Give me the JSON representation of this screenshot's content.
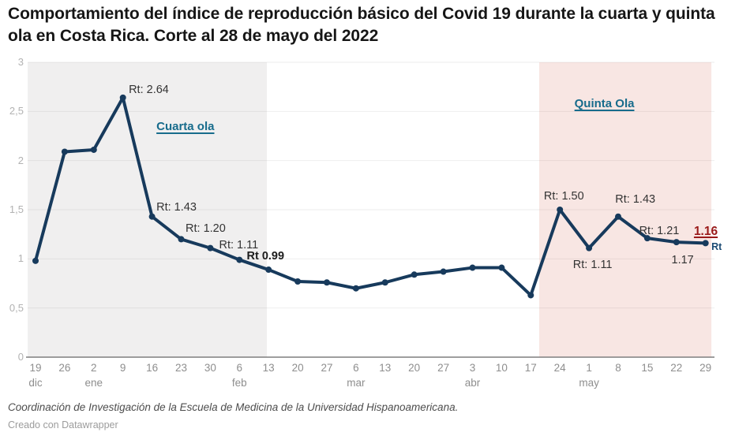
{
  "header": {
    "title": "Comportamiento del índice de reproducción básico del Covid 19 durante la cuarta y quinta ola en Costa Rica. Corte al 28 de mayo del 2022"
  },
  "footer": {
    "source": "Coordinación de Investigación de la Escuela de Medicina de la Universidad Hispanoamericana.",
    "credit": "Creado con Datawrapper"
  },
  "chart_data": {
    "type": "line",
    "title": "Comportamiento del índice de reproducción básico del Covid 19 durante la cuarta y quinta ola en Costa Rica. Corte al 28 de mayo del 2022",
    "ylabel": "Rt",
    "ylim": [
      0,
      3
    ],
    "grid": "horizontal",
    "legend_position": "none",
    "line_color": "#173a5c",
    "categories": [
      "19 dic",
      "26 dic",
      "2 ene",
      "9 ene",
      "16 ene",
      "23 ene",
      "30 ene",
      "6 feb",
      "13 feb",
      "20 feb",
      "27 feb",
      "6 mar",
      "13 mar",
      "20 mar",
      "27 mar",
      "3 abr",
      "10 abr",
      "17 abr",
      "24 abr",
      "1 may",
      "8 may",
      "15 may",
      "22 may",
      "29 may"
    ],
    "values": [
      0.98,
      2.09,
      2.11,
      2.64,
      1.43,
      1.2,
      1.11,
      0.99,
      0.89,
      0.77,
      0.76,
      0.7,
      0.76,
      0.84,
      0.87,
      0.91,
      0.91,
      0.63,
      1.5,
      1.11,
      1.43,
      1.21,
      1.17,
      1.16
    ],
    "x_axis": {
      "day_labels": [
        "19",
        "26",
        "2",
        "9",
        "16",
        "23",
        "30",
        "6",
        "13",
        "20",
        "27",
        "6",
        "13",
        "20",
        "27",
        "3",
        "10",
        "17",
        "24",
        "1",
        "8",
        "15",
        "22",
        "29"
      ],
      "month_labels": [
        {
          "i": 0,
          "label": "dic"
        },
        {
          "i": 2,
          "label": "ene"
        },
        {
          "i": 7,
          "label": "feb"
        },
        {
          "i": 11,
          "label": "mar"
        },
        {
          "i": 15,
          "label": "abr"
        },
        {
          "i": 19,
          "label": "may"
        }
      ]
    },
    "y_axis": {
      "labels": [
        "0",
        "0,5",
        "1",
        "1,5",
        "2",
        "2,5",
        "3"
      ],
      "values": [
        0,
        0.5,
        1,
        1.5,
        2,
        2.5,
        3
      ]
    },
    "bands": [
      {
        "id": "cuarta-ola-band",
        "from_i": -0.27,
        "to_i": 7.94,
        "color": "#f0efef"
      },
      {
        "id": "quinta-ola-band",
        "from_i": 17.29,
        "to_i": 23.2,
        "color": "#f8e6e3"
      }
    ],
    "annotations": [
      {
        "text": "Rt: 2.64",
        "i": 3.2,
        "v": 2.78,
        "style": "plain"
      },
      {
        "text": "Cuarta ola",
        "i": 4.15,
        "v": 2.41,
        "style": "wave"
      },
      {
        "text": "Rt: 1.43",
        "i": 4.15,
        "v": 1.59,
        "style": "plain"
      },
      {
        "text": "Rt: 1.20",
        "i": 5.15,
        "v": 1.37,
        "style": "plain"
      },
      {
        "text": "Rt: 1.11",
        "i": 6.3,
        "v": 1.205,
        "style": "plain"
      },
      {
        "text": "Rt 0.99",
        "i": 7.25,
        "v": 1.09,
        "style": "bold"
      },
      {
        "text": "Quinta Ola",
        "i": 18.5,
        "v": 2.64,
        "style": "wave"
      },
      {
        "text": "Rt: 1.50",
        "i": 17.45,
        "v": 1.7,
        "style": "plain"
      },
      {
        "text": "Rt: 1.11",
        "i": 18.45,
        "v": 1.0,
        "style": "plain"
      },
      {
        "text": "Rt: 1.43",
        "i": 19.9,
        "v": 1.67,
        "style": "plain"
      },
      {
        "text": "Rt: 1.21",
        "i": 20.72,
        "v": 1.35,
        "style": "plain"
      },
      {
        "text": "1.17",
        "i": 21.83,
        "v": 1.05,
        "style": "plain"
      },
      {
        "text": "1.16",
        "i": 22.6,
        "v": 1.34,
        "style": "red"
      },
      {
        "text": "Rt",
        "i": 23.2,
        "v": 1.19,
        "style": "rt"
      }
    ],
    "colors": {
      "line": "#173a5c",
      "wave_label": "#186c8c",
      "highlight_red": "#9a1a1a",
      "gridline": "rgba(0,0,0,0.065)",
      "axis_line": "#7f7f7f",
      "cuarta_band": "#f0efef",
      "quinta_band": "#f8e6e3"
    }
  }
}
